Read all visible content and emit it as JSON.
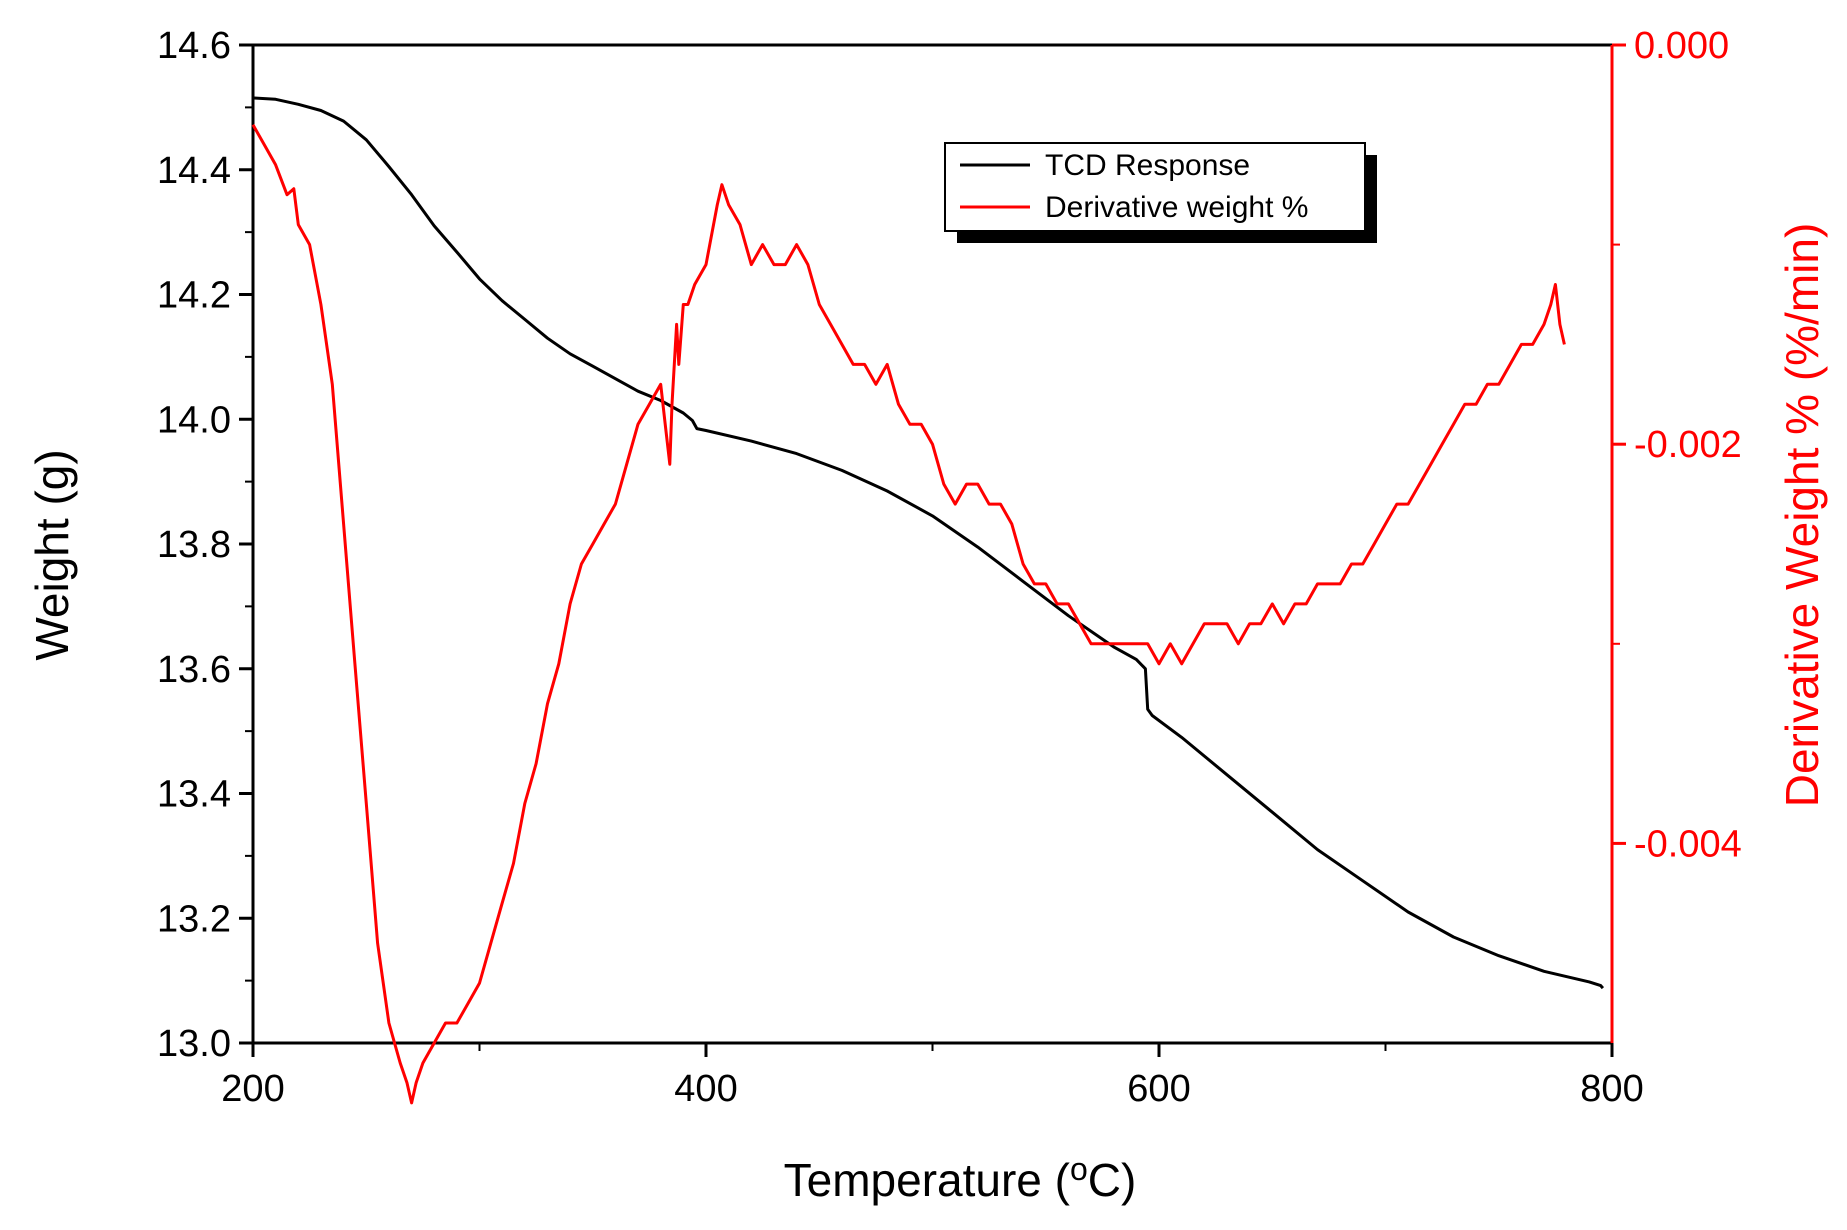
{
  "chart_data": {
    "type": "line",
    "xlabel": "Temperature (°C)",
    "xlabel_main": "Temperature (",
    "xlabel_sup": "o",
    "xlabel_tail": "C)",
    "ylabel": "Weight (g)",
    "y2label": "Derivative Weight % (%/min)",
    "xlim": [
      200,
      800
    ],
    "ylim": [
      13.0,
      14.6
    ],
    "y2lim": [
      -0.005,
      0.0
    ],
    "xticks": [
      200,
      400,
      600,
      800
    ],
    "xtick_labels": [
      "200",
      "400",
      "600",
      "800"
    ],
    "yticks": [
      13.0,
      13.2,
      13.4,
      13.6,
      13.8,
      14.0,
      14.2,
      14.4,
      14.6
    ],
    "ytick_labels": [
      "13.0",
      "13.2",
      "13.4",
      "13.6",
      "13.8",
      "14.0",
      "14.2",
      "14.4",
      "14.6"
    ],
    "y2ticks": [
      0.0,
      -0.002,
      -0.004
    ],
    "y2tick_labels": [
      "0.000",
      "-0.002",
      "-0.004"
    ],
    "legend_placement": "top-center",
    "series": [
      {
        "name": "TCD Response",
        "axis": "left",
        "color": "#000000",
        "x": [
          200,
          210,
          220,
          230,
          240,
          250,
          260,
          270,
          280,
          290,
          300,
          310,
          320,
          330,
          340,
          350,
          360,
          370,
          380,
          390,
          394,
          396,
          400,
          420,
          440,
          460,
          480,
          500,
          520,
          540,
          560,
          580,
          590,
          594,
          595,
          597,
          610,
          630,
          650,
          670,
          690,
          710,
          730,
          750,
          770,
          790,
          795,
          796
        ],
        "y": [
          14.515,
          14.513,
          14.505,
          14.495,
          14.478,
          14.448,
          14.405,
          14.36,
          14.31,
          14.268,
          14.225,
          14.19,
          14.16,
          14.13,
          14.105,
          14.085,
          14.065,
          14.045,
          14.03,
          14.01,
          13.998,
          13.985,
          13.982,
          13.965,
          13.945,
          13.918,
          13.885,
          13.845,
          13.795,
          13.74,
          13.685,
          13.635,
          13.615,
          13.6,
          13.535,
          13.525,
          13.49,
          13.43,
          13.37,
          13.31,
          13.26,
          13.21,
          13.17,
          13.14,
          13.115,
          13.098,
          13.092,
          13.088
        ]
      },
      {
        "name": "Derivative weight %",
        "axis": "right",
        "color": "#ff0000",
        "x": [
          200,
          205,
          210,
          215,
          218,
          220,
          225,
          230,
          235,
          240,
          245,
          250,
          255,
          260,
          265,
          268,
          270,
          272,
          275,
          280,
          285,
          290,
          295,
          300,
          305,
          310,
          315,
          320,
          325,
          330,
          335,
          340,
          345,
          350,
          355,
          360,
          365,
          370,
          375,
          380,
          382,
          384,
          385,
          387,
          388,
          390,
          392,
          395,
          400,
          405,
          407,
          410,
          415,
          420,
          425,
          430,
          435,
          440,
          445,
          450,
          455,
          460,
          465,
          470,
          475,
          480,
          485,
          490,
          495,
          500,
          505,
          510,
          515,
          520,
          525,
          530,
          535,
          540,
          545,
          550,
          555,
          560,
          565,
          570,
          575,
          580,
          585,
          590,
          595,
          600,
          605,
          610,
          615,
          620,
          625,
          630,
          635,
          640,
          645,
          650,
          655,
          660,
          665,
          670,
          675,
          680,
          685,
          690,
          695,
          700,
          705,
          710,
          715,
          720,
          725,
          730,
          735,
          740,
          745,
          750,
          755,
          760,
          765,
          770,
          773,
          775,
          777,
          779
        ],
        "y": [
          -0.0004,
          -0.0005,
          -0.0006,
          -0.00075,
          -0.00072,
          -0.0009,
          -0.001,
          -0.0013,
          -0.0017,
          -0.0024,
          -0.0031,
          -0.0038,
          -0.0045,
          -0.0049,
          -0.0051,
          -0.0052,
          -0.0053,
          -0.0052,
          -0.0051,
          -0.005,
          -0.0049,
          -0.0049,
          -0.0048,
          -0.0047,
          -0.0045,
          -0.0043,
          -0.0041,
          -0.0038,
          -0.0036,
          -0.0033,
          -0.0031,
          -0.0028,
          -0.0026,
          -0.0025,
          -0.0024,
          -0.0023,
          -0.0021,
          -0.0019,
          -0.0018,
          -0.0017,
          -0.0019,
          -0.0021,
          -0.0018,
          -0.0014,
          -0.0016,
          -0.0013,
          -0.0013,
          -0.0012,
          -0.0011,
          -0.0008,
          -0.0007,
          -0.0008,
          -0.0009,
          -0.0011,
          -0.001,
          -0.0011,
          -0.0011,
          -0.001,
          -0.0011,
          -0.0013,
          -0.0014,
          -0.0015,
          -0.0016,
          -0.0016,
          -0.0017,
          -0.0016,
          -0.0018,
          -0.0019,
          -0.0019,
          -0.002,
          -0.0022,
          -0.0023,
          -0.0022,
          -0.0022,
          -0.0023,
          -0.0023,
          -0.0024,
          -0.0026,
          -0.0027,
          -0.0027,
          -0.0028,
          -0.0028,
          -0.0029,
          -0.003,
          -0.003,
          -0.003,
          -0.003,
          -0.003,
          -0.003,
          -0.0031,
          -0.003,
          -0.0031,
          -0.003,
          -0.0029,
          -0.0029,
          -0.0029,
          -0.003,
          -0.0029,
          -0.0029,
          -0.0028,
          -0.0029,
          -0.0028,
          -0.0028,
          -0.0027,
          -0.0027,
          -0.0027,
          -0.0026,
          -0.0026,
          -0.0025,
          -0.0024,
          -0.0023,
          -0.0023,
          -0.0022,
          -0.0021,
          -0.002,
          -0.0019,
          -0.0018,
          -0.0018,
          -0.0017,
          -0.0017,
          -0.0016,
          -0.0015,
          -0.0015,
          -0.0014,
          -0.0013,
          -0.0012,
          -0.0014,
          -0.0015
        ]
      }
    ]
  },
  "legend": {
    "items": [
      "TCD Response",
      "Derivative weight %"
    ]
  }
}
